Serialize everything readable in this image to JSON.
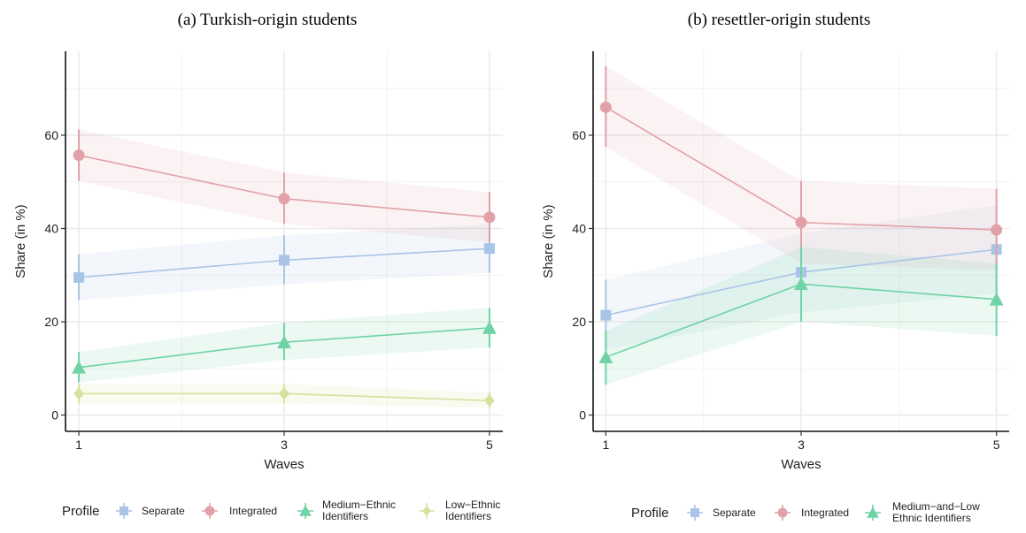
{
  "colors": {
    "separate": "#a9c4e6",
    "integrated": "#e2a1a8",
    "medium": "#6fd3a5",
    "low": "#d4e29d"
  },
  "legend_title": "Profile",
  "chart_data": [
    {
      "type": "line",
      "title": "(a) Turkish-origin students",
      "xlabel": "Waves",
      "ylabel": "Share (in %)",
      "x": [
        1,
        3,
        5
      ],
      "xticks": [
        "1",
        "3",
        "5"
      ],
      "yticks": [
        "0",
        "20",
        "40",
        "60"
      ],
      "ylim": [
        -3.5,
        78
      ],
      "grid": true,
      "legend_position": "bottom",
      "series": [
        {
          "name": "Separate",
          "marker": "square",
          "color_key": "separate",
          "values": [
            29.5,
            33.2,
            35.7
          ],
          "lower": [
            24.6,
            28.0,
            30.5
          ],
          "upper": [
            34.5,
            38.5,
            40.9
          ]
        },
        {
          "name": "Integrated",
          "marker": "circle",
          "color_key": "integrated",
          "values": [
            55.7,
            46.4,
            42.4
          ],
          "lower": [
            50.2,
            41.0,
            37.0
          ],
          "upper": [
            61.2,
            52.0,
            47.8
          ]
        },
        {
          "name": "Medium−Ethnic\nIdentifiers",
          "marker": "triangle",
          "color_key": "medium",
          "values": [
            10.2,
            15.6,
            18.7
          ],
          "lower": [
            7.0,
            11.8,
            14.5
          ],
          "upper": [
            13.5,
            19.8,
            23.0
          ]
        },
        {
          "name": "Low−Ethnic\nIdentifiers",
          "marker": "diamond",
          "color_key": "low",
          "values": [
            4.6,
            4.6,
            3.1
          ],
          "lower": [
            2.5,
            2.5,
            1.5
          ],
          "upper": [
            6.7,
            6.7,
            4.8
          ]
        }
      ]
    },
    {
      "type": "line",
      "title": "(b) resettler-origin students",
      "xlabel": "Waves",
      "ylabel": "Share (in %)",
      "x": [
        1,
        3,
        5
      ],
      "xticks": [
        "1",
        "3",
        "5"
      ],
      "yticks": [
        "0",
        "20",
        "40",
        "60"
      ],
      "ylim": [
        -3.5,
        78
      ],
      "grid": true,
      "legend_position": "bottom",
      "series": [
        {
          "name": "Separate",
          "marker": "square",
          "color_key": "separate",
          "values": [
            21.4,
            30.6,
            35.5
          ],
          "lower": [
            14.0,
            22.0,
            26.0
          ],
          "upper": [
            29.0,
            39.0,
            45.0
          ]
        },
        {
          "name": "Integrated",
          "marker": "circle",
          "color_key": "integrated",
          "values": [
            66.0,
            41.3,
            39.7
          ],
          "lower": [
            57.5,
            32.5,
            31.0
          ],
          "upper": [
            74.8,
            50.2,
            48.5
          ]
        },
        {
          "name": "Medium−and−Low\nEthnic Identifiers",
          "marker": "triangle",
          "color_key": "medium",
          "values": [
            12.4,
            28.1,
            24.8
          ],
          "lower": [
            6.5,
            20.0,
            17.0
          ],
          "upper": [
            18.0,
            36.0,
            32.5
          ]
        }
      ]
    }
  ]
}
